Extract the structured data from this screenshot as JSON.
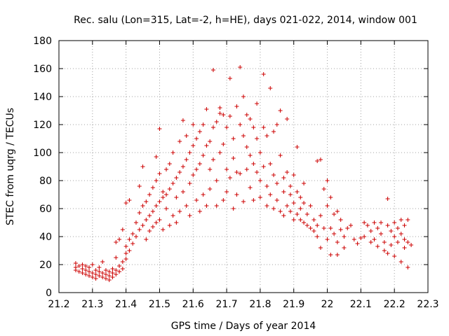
{
  "chart_data": {
    "type": "scatter",
    "title": "Rec. salu (Lon=315, Lat=-2, h=HE), days 021-022, 2014, window 001",
    "xlabel": "GPS time / Days of year 2014",
    "ylabel": "STEC from uqrg / TECUs",
    "xlim": [
      21.2,
      22.3
    ],
    "ylim": [
      0,
      180
    ],
    "xticks": [
      "21.2",
      "21.3",
      "21.4",
      "21.5",
      "21.6",
      "21.7",
      "21.8",
      "21.9",
      "22",
      "22.1",
      "22.2",
      "22.3"
    ],
    "yticks": [
      "0",
      "20",
      "40",
      "60",
      "80",
      "100",
      "120",
      "140",
      "160",
      "180"
    ],
    "grid": true,
    "marker": "+",
    "color": "#cc0000",
    "series": [
      {
        "points": [
          [
            21.25,
            21
          ],
          [
            21.25,
            18
          ],
          [
            21.25,
            16
          ],
          [
            21.26,
            19
          ],
          [
            21.26,
            15
          ],
          [
            21.27,
            17
          ],
          [
            21.27,
            14
          ],
          [
            21.27,
            20
          ],
          [
            21.28,
            16
          ],
          [
            21.28,
            13
          ],
          [
            21.28,
            19
          ],
          [
            21.29,
            15
          ],
          [
            21.29,
            12
          ],
          [
            21.29,
            18
          ],
          [
            21.3,
            14
          ],
          [
            21.3,
            11
          ],
          [
            21.3,
            20
          ],
          [
            21.31,
            16
          ],
          [
            21.31,
            13
          ],
          [
            21.31,
            10
          ],
          [
            21.32,
            15
          ],
          [
            21.32,
            12
          ],
          [
            21.32,
            18
          ],
          [
            21.33,
            14
          ],
          [
            21.33,
            11
          ],
          [
            21.33,
            22
          ],
          [
            21.34,
            13
          ],
          [
            21.34,
            10
          ],
          [
            21.34,
            16
          ],
          [
            21.35,
            12
          ],
          [
            21.35,
            9
          ],
          [
            21.35,
            15
          ],
          [
            21.36,
            14
          ],
          [
            21.36,
            11
          ],
          [
            21.36,
            17
          ],
          [
            21.37,
            13
          ],
          [
            21.37,
            16
          ],
          [
            21.37,
            25
          ],
          [
            21.37,
            36
          ],
          [
            21.38,
            15
          ],
          [
            21.38,
            19
          ],
          [
            21.38,
            38
          ],
          [
            21.39,
            17
          ],
          [
            21.39,
            22
          ],
          [
            21.39,
            45
          ],
          [
            21.4,
            24
          ],
          [
            21.4,
            28
          ],
          [
            21.4,
            33
          ],
          [
            21.4,
            64
          ],
          [
            21.41,
            30
          ],
          [
            21.41,
            38
          ],
          [
            21.41,
            66
          ],
          [
            21.42,
            35
          ],
          [
            21.42,
            42
          ],
          [
            21.43,
            40
          ],
          [
            21.43,
            50
          ],
          [
            21.44,
            45
          ],
          [
            21.44,
            57
          ],
          [
            21.44,
            76
          ],
          [
            21.45,
            48
          ],
          [
            21.45,
            62
          ],
          [
            21.45,
            90
          ],
          [
            21.46,
            52
          ],
          [
            21.46,
            65
          ],
          [
            21.46,
            38
          ],
          [
            21.47,
            55
          ],
          [
            21.47,
            70
          ],
          [
            21.47,
            44
          ],
          [
            21.48,
            58
          ],
          [
            21.48,
            75
          ],
          [
            21.48,
            47
          ],
          [
            21.49,
            62
          ],
          [
            21.49,
            80
          ],
          [
            21.49,
            50
          ],
          [
            21.49,
            97
          ],
          [
            21.5,
            65
          ],
          [
            21.5,
            85
          ],
          [
            21.5,
            52
          ],
          [
            21.5,
            117
          ],
          [
            21.51,
            68
          ],
          [
            21.51,
            72
          ],
          [
            21.51,
            45
          ],
          [
            21.52,
            70
          ],
          [
            21.52,
            88
          ],
          [
            21.52,
            60
          ],
          [
            21.53,
            74
          ],
          [
            21.53,
            92
          ],
          [
            21.53,
            48
          ],
          [
            21.54,
            78
          ],
          [
            21.54,
            55
          ],
          [
            21.54,
            100
          ],
          [
            21.55,
            82
          ],
          [
            21.55,
            68
          ],
          [
            21.55,
            50
          ],
          [
            21.56,
            86
          ],
          [
            21.56,
            58
          ],
          [
            21.56,
            108
          ],
          [
            21.57,
            90
          ],
          [
            21.57,
            72
          ],
          [
            21.57,
            123
          ],
          [
            21.58,
            95
          ],
          [
            21.58,
            62
          ],
          [
            21.58,
            112
          ],
          [
            21.59,
            100
          ],
          [
            21.59,
            78
          ],
          [
            21.59,
            55
          ],
          [
            21.6,
            105
          ],
          [
            21.6,
            84
          ],
          [
            21.6,
            120
          ],
          [
            21.61,
            110
          ],
          [
            21.61,
            66
          ],
          [
            21.61,
            88
          ],
          [
            21.62,
            115
          ],
          [
            21.62,
            92
          ],
          [
            21.62,
            58
          ],
          [
            21.63,
            120
          ],
          [
            21.63,
            98
          ],
          [
            21.63,
            70
          ],
          [
            21.64,
            131
          ],
          [
            21.64,
            105
          ],
          [
            21.64,
            62
          ],
          [
            21.65,
            108
          ],
          [
            21.65,
            88
          ],
          [
            21.65,
            74
          ],
          [
            21.66,
            159
          ],
          [
            21.66,
            118
          ],
          [
            21.66,
            95
          ],
          [
            21.67,
            122
          ],
          [
            21.67,
            80
          ],
          [
            21.67,
            62
          ],
          [
            21.68,
            132
          ],
          [
            21.68,
            128
          ],
          [
            21.68,
            100
          ],
          [
            21.69,
            127
          ],
          [
            21.69,
            106
          ],
          [
            21.69,
            66
          ],
          [
            21.7,
            118
          ],
          [
            21.7,
            88
          ],
          [
            21.7,
            72
          ],
          [
            21.71,
            153
          ],
          [
            21.71,
            126
          ],
          [
            21.71,
            82
          ],
          [
            21.72,
            110
          ],
          [
            21.72,
            96
          ],
          [
            21.72,
            60
          ],
          [
            21.73,
            133
          ],
          [
            21.73,
            86
          ],
          [
            21.73,
            70
          ],
          [
            21.74,
            161
          ],
          [
            21.74,
            120
          ],
          [
            21.74,
            85
          ],
          [
            21.75,
            140
          ],
          [
            21.75,
            112
          ],
          [
            21.75,
            65
          ],
          [
            21.76,
            127
          ],
          [
            21.76,
            104
          ],
          [
            21.76,
            88
          ],
          [
            21.77,
            124
          ],
          [
            21.77,
            98
          ],
          [
            21.77,
            75
          ],
          [
            21.78,
            118
          ],
          [
            21.78,
            92
          ],
          [
            21.78,
            66
          ],
          [
            21.79,
            135
          ],
          [
            21.79,
            110
          ],
          [
            21.79,
            86
          ],
          [
            21.8,
            100
          ],
          [
            21.8,
            80
          ],
          [
            21.8,
            68
          ],
          [
            21.81,
            156
          ],
          [
            21.81,
            118
          ],
          [
            21.81,
            90
          ],
          [
            21.82,
            112
          ],
          [
            21.82,
            76
          ],
          [
            21.82,
            62
          ],
          [
            21.83,
            146
          ],
          [
            21.83,
            92
          ],
          [
            21.83,
            70
          ],
          [
            21.84,
            115
          ],
          [
            21.84,
            84
          ],
          [
            21.84,
            60
          ],
          [
            21.85,
            120
          ],
          [
            21.85,
            78
          ],
          [
            21.85,
            66
          ],
          [
            21.86,
            130
          ],
          [
            21.86,
            98
          ],
          [
            21.86,
            58
          ],
          [
            21.87,
            82
          ],
          [
            21.87,
            72
          ],
          [
            21.87,
            55
          ],
          [
            21.88,
            124
          ],
          [
            21.88,
            86
          ],
          [
            21.88,
            62
          ],
          [
            21.89,
            76
          ],
          [
            21.89,
            58
          ],
          [
            21.89,
            70
          ],
          [
            21.9,
            84
          ],
          [
            21.9,
            64
          ],
          [
            21.9,
            52
          ],
          [
            21.91,
            104
          ],
          [
            21.91,
            72
          ],
          [
            21.91,
            56
          ],
          [
            21.92,
            68
          ],
          [
            21.92,
            52
          ],
          [
            21.92,
            60
          ],
          [
            21.93,
            78
          ],
          [
            21.93,
            50
          ],
          [
            21.93,
            64
          ],
          [
            21.94,
            56
          ],
          [
            21.94,
            48
          ],
          [
            21.95,
            46
          ],
          [
            21.95,
            62
          ],
          [
            21.96,
            52
          ],
          [
            21.96,
            44
          ],
          [
            21.97,
            94
          ],
          [
            21.97,
            48
          ],
          [
            21.97,
            40
          ],
          [
            21.98,
            95
          ],
          [
            21.98,
            55
          ],
          [
            21.98,
            32
          ],
          [
            21.99,
            46
          ],
          [
            21.99,
            74
          ],
          [
            22.0,
            62
          ],
          [
            22.0,
            80
          ],
          [
            22.0,
            38
          ],
          [
            22.01,
            68
          ],
          [
            22.01,
            46
          ],
          [
            22.01,
            27
          ],
          [
            22.02,
            56
          ],
          [
            22.02,
            42
          ],
          [
            22.03,
            58
          ],
          [
            22.03,
            36
          ],
          [
            22.03,
            27
          ],
          [
            22.04,
            52
          ],
          [
            22.04,
            45
          ],
          [
            22.05,
            40
          ],
          [
            22.05,
            32
          ],
          [
            22.06,
            46
          ],
          [
            22.07,
            48
          ],
          [
            22.08,
            38
          ],
          [
            22.09,
            35
          ],
          [
            22.1,
            39
          ],
          [
            22.11,
            50
          ],
          [
            22.11,
            40
          ],
          [
            22.12,
            48
          ],
          [
            22.13,
            44
          ],
          [
            22.13,
            36
          ],
          [
            22.14,
            50
          ],
          [
            22.14,
            38
          ],
          [
            22.15,
            46
          ],
          [
            22.15,
            33
          ],
          [
            22.16,
            50
          ],
          [
            22.16,
            42
          ],
          [
            22.17,
            30
          ],
          [
            22.17,
            36
          ],
          [
            22.18,
            67
          ],
          [
            22.18,
            48
          ],
          [
            22.18,
            28
          ],
          [
            22.19,
            44
          ],
          [
            22.19,
            34
          ],
          [
            22.2,
            50
          ],
          [
            22.2,
            40
          ],
          [
            22.2,
            26
          ],
          [
            22.21,
            46
          ],
          [
            22.21,
            36
          ],
          [
            22.22,
            52
          ],
          [
            22.22,
            42
          ],
          [
            22.22,
            22
          ],
          [
            22.23,
            48
          ],
          [
            22.23,
            32
          ],
          [
            22.23,
            38
          ],
          [
            22.24,
            52
          ],
          [
            22.24,
            36
          ],
          [
            22.24,
            18
          ],
          [
            22.25,
            34
          ]
        ]
      }
    ]
  }
}
